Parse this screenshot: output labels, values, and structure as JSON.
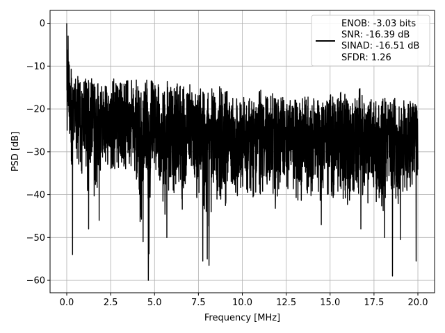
{
  "chart_data": {
    "type": "line",
    "xlabel": "Frequency [MHz]",
    "ylabel": "PSD [dB]",
    "xlim": [
      -0.95,
      20.95
    ],
    "ylim": [
      -62.9,
      3.0
    ],
    "x_ticks": [
      0.0,
      2.5,
      5.0,
      7.5,
      10.0,
      12.5,
      15.0,
      17.5,
      20.0
    ],
    "x_tick_labels": [
      "0.0",
      "2.5",
      "5.0",
      "7.5",
      "10.0",
      "12.5",
      "15.0",
      "17.5",
      "20.0"
    ],
    "y_ticks": [
      0,
      -10,
      -20,
      -30,
      -40,
      -50,
      -60
    ],
    "y_tick_labels": [
      "0",
      "−10",
      "−20",
      "−30",
      "−40",
      "−50",
      "−60"
    ],
    "grid": true,
    "legend": {
      "placement": "upper right",
      "entries": [
        "ENOB: -3.03 bits",
        "SNR: -16.39 dB",
        "SINAD: -16.51 dB",
        "SFDR: 1.26"
      ]
    },
    "series": [
      {
        "color": "#000000",
        "x": [
          0.0,
          0.05,
          0.1,
          0.15,
          0.2,
          0.25,
          0.3,
          0.35,
          0.4,
          0.45,
          0.5,
          0.6,
          0.7,
          0.8,
          0.9,
          1.0,
          1.1,
          1.2,
          1.3,
          1.4,
          1.5,
          1.6,
          1.7,
          1.8,
          1.9,
          2.0,
          2.2,
          2.4,
          2.6,
          2.8,
          3.0,
          3.2,
          3.4,
          3.6,
          3.8,
          4.0,
          4.2,
          4.4,
          4.6,
          4.7,
          4.8,
          5.0,
          5.2,
          5.4,
          5.6,
          5.8,
          6.0,
          6.2,
          6.4,
          6.6,
          6.8,
          7.0,
          7.2,
          7.4,
          7.6,
          7.8,
          8.0,
          8.1,
          8.3,
          8.5,
          8.7,
          8.9,
          9.1,
          9.3,
          9.5,
          9.7,
          9.9,
          10.1,
          10.3,
          10.5,
          10.7,
          10.9,
          11.1,
          11.3,
          11.5,
          11.7,
          11.9,
          12.1,
          12.3,
          12.5,
          12.7,
          12.9,
          13.1,
          13.3,
          13.5,
          13.7,
          13.9,
          14.1,
          14.3,
          14.5,
          14.7,
          14.9,
          15.1,
          15.3,
          15.5,
          15.7,
          15.9,
          16.1,
          16.3,
          16.5,
          16.7,
          16.9,
          17.1,
          17.3,
          17.5,
          17.7,
          17.9,
          18.1,
          18.3,
          18.5,
          18.7,
          18.9,
          19.1,
          19.3,
          19.5,
          19.7,
          19.9,
          20.0
        ],
        "upper": [
          0.0,
          -5.0,
          -6.0,
          -7.5,
          -8.5,
          -9.5,
          -10.0,
          -11.0,
          -12.0,
          -12.5,
          -13.0,
          -12.5,
          -12.0,
          -13.0,
          -12.0,
          -13.0,
          -12.5,
          -13.5,
          -13.0,
          -12.0,
          -13.5,
          -14.0,
          -12.5,
          -14.5,
          -13.0,
          -14.0,
          -13.5,
          -15.0,
          -13.0,
          -12.5,
          -13.0,
          -14.5,
          -12.5,
          -14.0,
          -12.0,
          -13.5,
          -15.0,
          -14.0,
          -12.5,
          -15.5,
          -13.0,
          -14.5,
          -13.0,
          -15.0,
          -12.5,
          -14.0,
          -15.5,
          -13.0,
          -15.0,
          -14.0,
          -15.5,
          -13.5,
          -14.5,
          -16.0,
          -14.0,
          -15.5,
          -14.0,
          -16.5,
          -15.0,
          -17.0,
          -14.5,
          -16.0,
          -14.5,
          -16.5,
          -15.5,
          -17.0,
          -15.0,
          -16.5,
          -14.5,
          -16.0,
          -17.0,
          -15.5,
          -15.0,
          -16.5,
          -16.0,
          -15.0,
          -17.5,
          -16.5,
          -16.0,
          -18.0,
          -17.5,
          -19.0,
          -16.0,
          -18.5,
          -17.0,
          -16.5,
          -18.0,
          -15.0,
          -17.5,
          -18.5,
          -16.0,
          -17.0,
          -16.5,
          -18.0,
          -14.5,
          -17.0,
          -16.0,
          -18.5,
          -17.5,
          -16.5,
          -15.0,
          -18.0,
          -19.0,
          -17.5,
          -18.0,
          -17.5,
          -19.0,
          -16.5,
          -18.0,
          -18.5,
          -17.0,
          -19.5,
          -18.0,
          -17.5,
          -19.0,
          -16.5,
          -18.5,
          -17.5
        ],
        "lower": [
          -25.0,
          -24.0,
          -25.0,
          -29.0,
          -30.0,
          -33.0,
          -54.0,
          -32.0,
          -30.0,
          -37.0,
          -34.0,
          -38.0,
          -35.0,
          -39.0,
          -33.0,
          -36.0,
          -41.0,
          -48.0,
          -35.0,
          -37.0,
          -33.0,
          -46.0,
          -42.0,
          -34.0,
          -36.0,
          -33.0,
          -35.0,
          -32.0,
          -36.0,
          -33.0,
          -35.0,
          -34.0,
          -37.0,
          -33.0,
          -36.0,
          -40.0,
          -51.0,
          -34.0,
          -42.0,
          -60.0,
          -35.0,
          -38.0,
          -36.0,
          -40.0,
          -49.0,
          -39.0,
          -38.0,
          -42.0,
          -40.0,
          -45.0,
          -41.0,
          -38.0,
          -40.0,
          -43.0,
          -39.0,
          -44.0,
          -45.0,
          -57.0,
          -40.0,
          -43.0,
          -41.0,
          -44.0,
          -42.0,
          -40.0,
          -39.0,
          -42.0,
          -41.0,
          -38.0,
          -40.0,
          -39.0,
          -42.0,
          -38.0,
          -41.0,
          -43.0,
          -39.0,
          -41.0,
          -44.0,
          -40.0,
          -39.0,
          -42.0,
          -38.0,
          -41.0,
          -42.0,
          -43.0,
          -39.0,
          -40.0,
          -42.0,
          -41.0,
          -39.0,
          -43.0,
          -40.0,
          -41.0,
          -42.0,
          -39.0,
          -40.0,
          -42.0,
          -41.0,
          -46.0,
          -39.0,
          -42.0,
          -40.0,
          -42.0,
          -44.0,
          -39.0,
          -41.0,
          -42.0,
          -43.0,
          -45.0,
          -41.0,
          -40.0,
          -42.0,
          -44.0,
          -39.0,
          -41.0,
          -38.0,
          -40.0,
          -37.0,
          -39.0
        ],
        "spikes": [
          {
            "x": 0.02,
            "y": -25.0
          },
          {
            "x": 0.33,
            "y": -54.0
          },
          {
            "x": 4.65,
            "y": -60.0
          },
          {
            "x": 4.35,
            "y": -51.0
          },
          {
            "x": 5.7,
            "y": -50.0
          },
          {
            "x": 7.75,
            "y": -55.5
          },
          {
            "x": 8.1,
            "y": -56.5
          },
          {
            "x": 8.0,
            "y": -55.0
          },
          {
            "x": 1.25,
            "y": -48.0
          },
          {
            "x": 1.85,
            "y": -46.0
          },
          {
            "x": 18.1,
            "y": -50.0
          },
          {
            "x": 18.55,
            "y": -59.0
          },
          {
            "x": 19.0,
            "y": -50.5
          },
          {
            "x": 19.9,
            "y": -55.5
          },
          {
            "x": 16.75,
            "y": -48.0
          },
          {
            "x": 14.5,
            "y": -47.0
          },
          {
            "x": 0.0,
            "y": 0.0
          },
          {
            "x": 0.08,
            "y": -3.0
          }
        ]
      }
    ]
  }
}
